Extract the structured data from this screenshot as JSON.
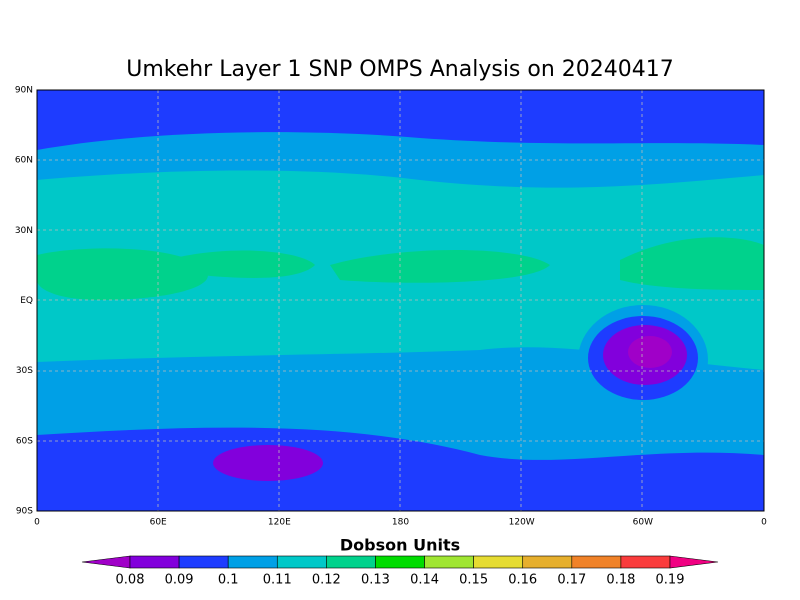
{
  "title": "Umkehr Layer 1 SNP OMPS Analysis on 20240417",
  "lat_labels": [
    "90N",
    "60N",
    "30N",
    "EQ",
    "30S",
    "60S",
    "90S"
  ],
  "lon_labels": [
    "0",
    "60E",
    "120E",
    "180",
    "120W",
    "60W",
    "0"
  ],
  "colorbar": {
    "title": "Dobson Units",
    "labels": [
      "0.08",
      "0.09",
      "0.1",
      "0.11",
      "0.12",
      "0.13",
      "0.14",
      "0.15",
      "0.16",
      "0.17",
      "0.18",
      "0.19"
    ],
    "colors": [
      "#a000c8",
      "#8200dc",
      "#1e3cff",
      "#00a0e6",
      "#00c8c8",
      "#00d28c",
      "#00dc00",
      "#a0e632",
      "#e6dc32",
      "#e6af2d",
      "#f08228",
      "#fa3c3c",
      "#f00082"
    ]
  }
}
